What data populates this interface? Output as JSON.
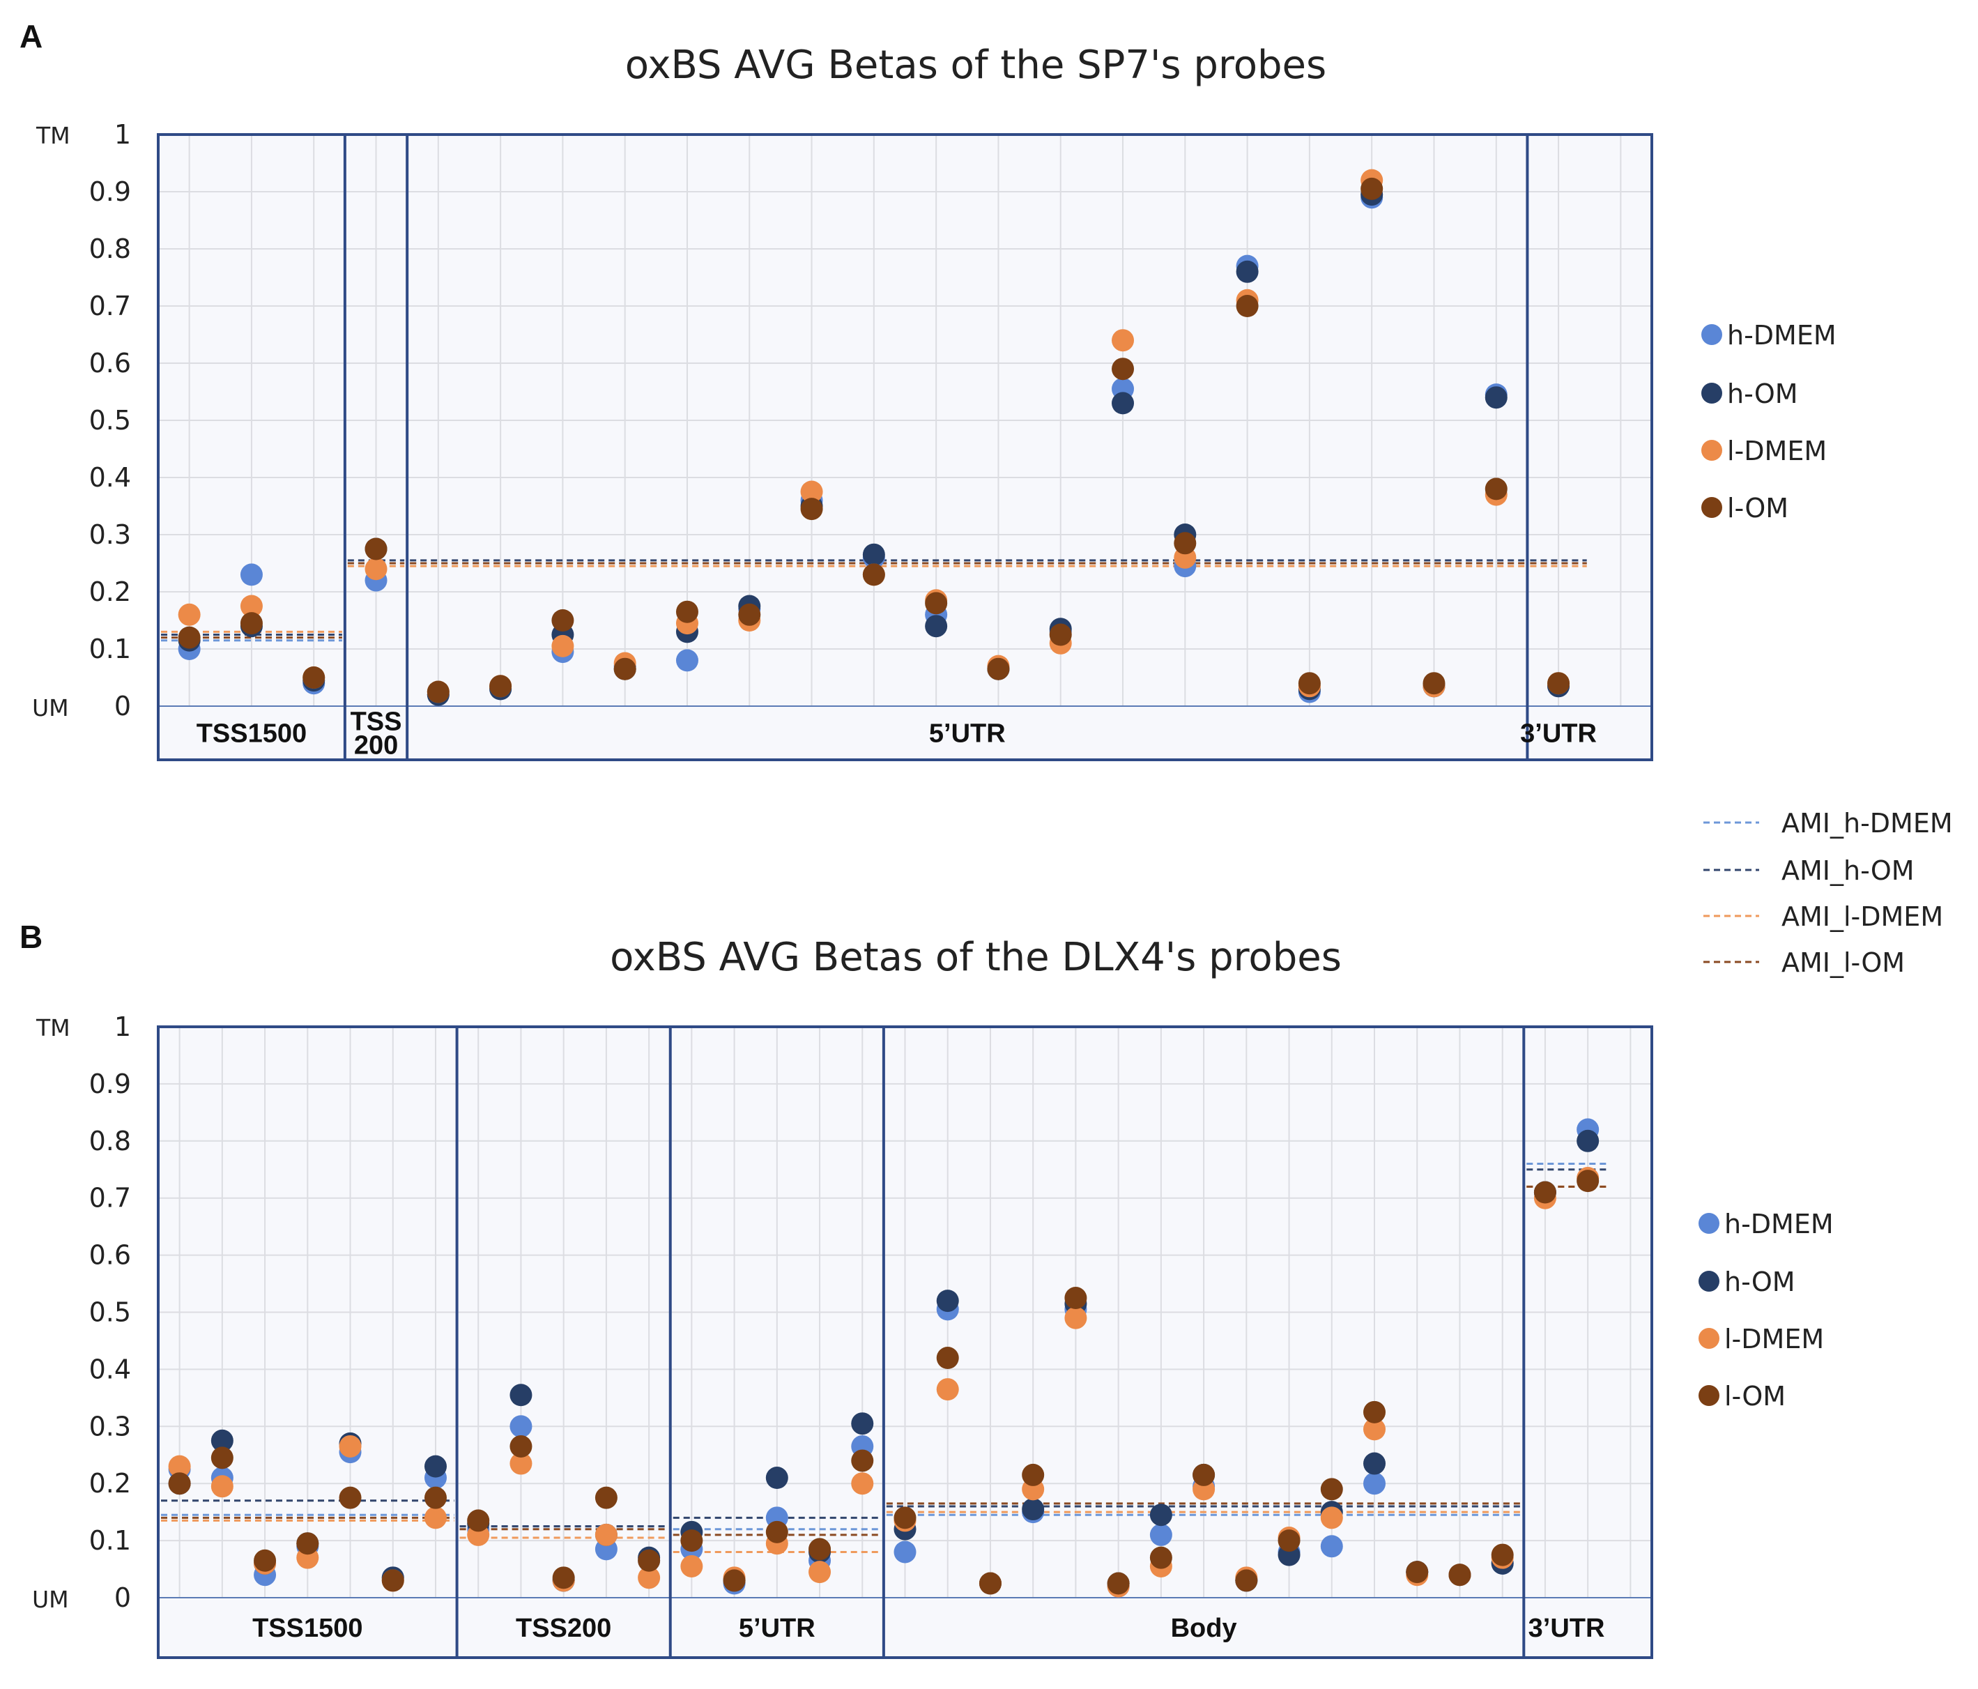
{
  "legend": {
    "series": [
      {
        "name": "h-DMEM",
        "color": "#5a86d6"
      },
      {
        "name": "h-OM",
        "color": "#263e66"
      },
      {
        "name": "l-DMEM",
        "color": "#ec8a48"
      },
      {
        "name": "l-OM",
        "color": "#7b3f14"
      }
    ],
    "ami": [
      {
        "name": "AMI_h-DMEM",
        "color": "#6d97d8"
      },
      {
        "name": "AMI_h-OM",
        "color": "#32466d"
      },
      {
        "name": "AMI_l-DMEM",
        "color": "#ef9a5c"
      },
      {
        "name": "AMI_l-OM",
        "color": "#8a4a22"
      }
    ]
  },
  "chart_data": [
    {
      "panel": "A",
      "type": "scatter",
      "title": "oxBS AVG Betas of the SP7's probes",
      "ylim": [
        0,
        1
      ],
      "yticks": [
        "0",
        "0.1",
        "0.2",
        "0.3",
        "0.4",
        "0.5",
        "0.6",
        "0.7",
        "0.8",
        "0.9",
        "1"
      ],
      "y_top_label": "TM",
      "y_bottom_label": "UM",
      "grid": true,
      "n_columns": 24,
      "regions": [
        {
          "label": "TSS1500",
          "columns": [
            1,
            3
          ]
        },
        {
          "label": "TSS\n200",
          "columns": [
            4,
            4
          ]
        },
        {
          "label": "5’UTR",
          "columns": [
            5,
            22
          ]
        },
        {
          "label": "3’UTR",
          "columns": [
            23,
            23
          ]
        }
      ],
      "series": [
        {
          "name": "h-DMEM",
          "values": [
            0.1,
            0.23,
            0.04,
            0.22,
            0.02,
            0.03,
            0.095,
            0.07,
            0.08,
            0.17,
            0.36,
            0.26,
            0.16,
            0.065,
            0.13,
            0.555,
            0.245,
            0.77,
            0.025,
            0.89,
            0.035,
            0.545,
            0.035
          ]
        },
        {
          "name": "h-OM",
          "values": [
            0.115,
            0.14,
            0.045,
            0.275,
            0.02,
            0.03,
            0.125,
            0.065,
            0.13,
            0.175,
            0.35,
            0.265,
            0.14,
            0.065,
            0.135,
            0.53,
            0.3,
            0.76,
            0.03,
            0.895,
            0.035,
            0.54,
            0.035
          ]
        },
        {
          "name": "l-DMEM",
          "values": [
            0.16,
            0.175,
            0.05,
            0.24,
            0.025,
            0.035,
            0.105,
            0.075,
            0.145,
            0.15,
            0.375,
            0.23,
            0.185,
            0.07,
            0.11,
            0.64,
            0.26,
            0.71,
            0.035,
            0.92,
            0.035,
            0.37,
            0.04
          ]
        },
        {
          "name": "l-OM",
          "values": [
            0.12,
            0.145,
            0.05,
            0.275,
            0.025,
            0.035,
            0.15,
            0.065,
            0.165,
            0.16,
            0.345,
            0.23,
            0.18,
            0.065,
            0.125,
            0.59,
            0.285,
            0.7,
            0.04,
            0.905,
            0.04,
            0.38,
            0.04
          ]
        }
      ],
      "ami_lines": [
        {
          "name": "AMI_h-DMEM",
          "values": [
            0.115,
            0.25,
            0.25,
            0.25
          ]
        },
        {
          "name": "AMI_h-OM",
          "values": [
            0.125,
            0.255,
            0.255,
            0.255
          ]
        },
        {
          "name": "AMI_l-DMEM",
          "values": [
            0.13,
            0.245,
            0.245,
            0.245
          ]
        },
        {
          "name": "AMI_l-OM",
          "values": [
            0.12,
            0.25,
            0.25,
            0.25
          ]
        }
      ]
    },
    {
      "panel": "B",
      "type": "scatter",
      "title": "oxBS AVG Betas of the DLX4's probes",
      "ylim": [
        0,
        1
      ],
      "yticks": [
        "0",
        "0.1",
        "0.2",
        "0.3",
        "0.4",
        "0.5",
        "0.6",
        "0.7",
        "0.8",
        "0.9",
        "1"
      ],
      "y_top_label": "TM",
      "y_bottom_label": "UM",
      "grid": true,
      "n_columns": 35,
      "regions": [
        {
          "label": "TSS1500",
          "columns": [
            1,
            7
          ]
        },
        {
          "label": "TSS200",
          "columns": [
            8,
            12
          ]
        },
        {
          "label": "5’UTR",
          "columns": [
            13,
            17
          ]
        },
        {
          "label": "Body",
          "columns": [
            18,
            32
          ]
        },
        {
          "label": "3’UTR",
          "columns": [
            33,
            34
          ]
        }
      ],
      "series": [
        {
          "name": "h-DMEM",
          "values": [
            0.225,
            0.21,
            0.04,
            0.09,
            0.255,
            0.035,
            0.21,
            0.12,
            0.3,
            0.03,
            0.085,
            0.065,
            0.085,
            0.025,
            0.14,
            0.065,
            0.265,
            0.08,
            0.505,
            0.025,
            0.15,
            0.505,
            0.02,
            0.11,
            0.195,
            0.03,
            0.08,
            0.09,
            0.2,
            0.045,
            0.04,
            0.06,
            0.71,
            0.82
          ]
        },
        {
          "name": "h-OM",
          "values": [
            0.2,
            0.275,
            0.06,
            0.095,
            0.27,
            0.035,
            0.23,
            0.13,
            0.355,
            0.03,
            0.11,
            0.07,
            0.115,
            0.03,
            0.21,
            0.08,
            0.305,
            0.12,
            0.52,
            0.025,
            0.155,
            0.515,
            0.025,
            0.145,
            0.215,
            0.03,
            0.075,
            0.15,
            0.235,
            0.045,
            0.04,
            0.06,
            0.71,
            0.8
          ]
        },
        {
          "name": "l-DMEM",
          "values": [
            0.23,
            0.195,
            0.06,
            0.07,
            0.265,
            0.03,
            0.14,
            0.11,
            0.235,
            0.03,
            0.11,
            0.035,
            0.055,
            0.035,
            0.095,
            0.045,
            0.2,
            0.135,
            0.365,
            0.025,
            0.19,
            0.49,
            0.02,
            0.055,
            0.19,
            0.035,
            0.105,
            0.14,
            0.295,
            0.04,
            0.04,
            0.07,
            0.7,
            0.735
          ]
        },
        {
          "name": "l-OM",
          "values": [
            0.2,
            0.245,
            0.065,
            0.095,
            0.175,
            0.03,
            0.175,
            0.135,
            0.265,
            0.035,
            0.175,
            0.065,
            0.1,
            0.03,
            0.115,
            0.085,
            0.24,
            0.14,
            0.42,
            0.025,
            0.215,
            0.525,
            0.025,
            0.07,
            0.215,
            0.03,
            0.1,
            0.19,
            0.325,
            0.045,
            0.04,
            0.075,
            0.71,
            0.73
          ]
        }
      ],
      "ami_lines": [
        {
          "name": "AMI_h-DMEM",
          "values": [
            0.145,
            0.125,
            0.12,
            0.145,
            0.76
          ]
        },
        {
          "name": "AMI_h-OM",
          "values": [
            0.17,
            0.125,
            0.14,
            0.16,
            0.75
          ]
        },
        {
          "name": "AMI_l-DMEM",
          "values": [
            0.135,
            0.105,
            0.08,
            0.15,
            0.72
          ]
        },
        {
          "name": "AMI_l-OM",
          "values": [
            0.14,
            0.12,
            0.11,
            0.165,
            0.72
          ]
        }
      ]
    }
  ]
}
